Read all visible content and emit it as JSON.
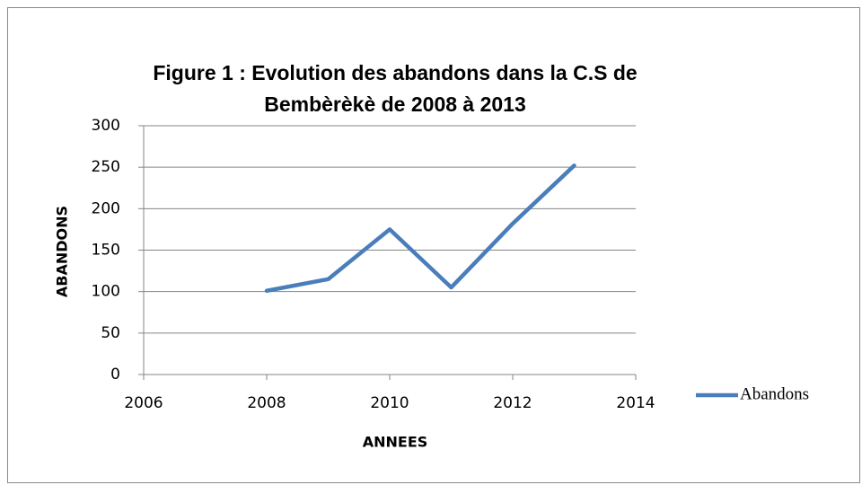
{
  "chart_data": {
    "type": "line",
    "title": [
      "Figure 1 : Evolution des abandons dans la C.S de",
      "Bembèrèkè de 2008 à 2013"
    ],
    "x_label": "ANNEES",
    "y_label": "ABANDONS",
    "x": [
      2008,
      2009,
      2010,
      2011,
      2012,
      2013
    ],
    "series": [
      {
        "name": "Abandons",
        "color": "#4a7ebb",
        "values": [
          101,
          115,
          175,
          105,
          182,
          252
        ]
      }
    ],
    "xlim": [
      2006,
      2014
    ],
    "xticks": [
      2006,
      2008,
      2010,
      2012,
      2014
    ],
    "ylim": [
      0,
      300
    ],
    "yticks": [
      0,
      50,
      100,
      150,
      200,
      250,
      300
    ],
    "grid": true,
    "legend": "right"
  }
}
